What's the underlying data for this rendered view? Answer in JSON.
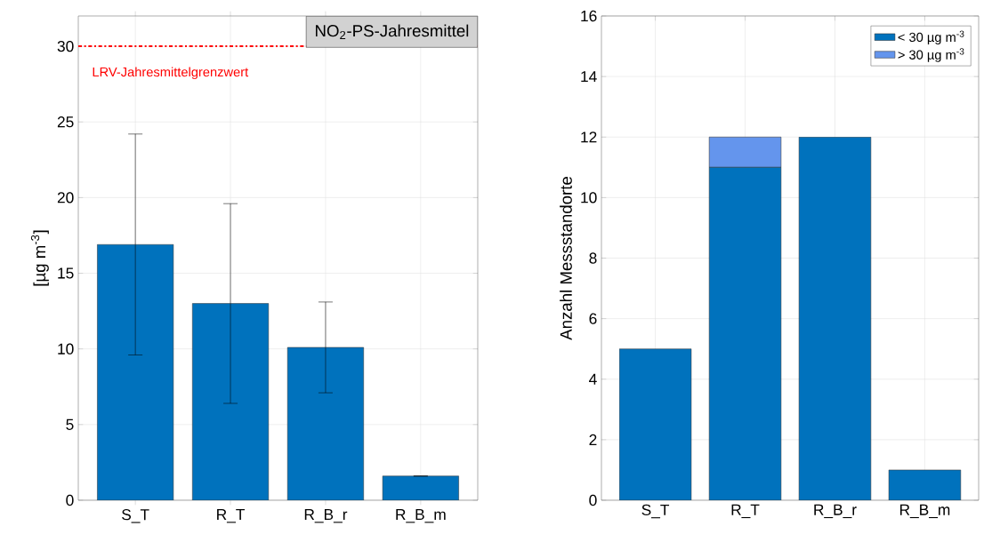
{
  "chart_data": [
    {
      "type": "bar",
      "title": "NO$_{2}$-PS-Jahresmittel",
      "ylabel": "[µg m$^{-3}$]",
      "categories": [
        "S_T",
        "R_T",
        "R_B_r",
        "R_B_m"
      ],
      "values": [
        16.9,
        13.0,
        10.1,
        1.6
      ],
      "errors": [
        [
          9.6,
          24.2
        ],
        [
          6.4,
          19.6
        ],
        [
          7.1,
          13.1
        ],
        null
      ],
      "color": "#0072bd",
      "ylim": [
        0,
        32
      ],
      "yticks": [
        0,
        5,
        10,
        15,
        20,
        25,
        30
      ],
      "grid": true,
      "ref_lines": [
        {
          "axis": "y",
          "value": 30,
          "label": "LRV-Jahresmittelgrenzwert",
          "color": "#ff0000",
          "line_style": "dashed"
        }
      ]
    },
    {
      "type": "bar",
      "ylabel": "Anzahl Messstandorte",
      "categories": [
        "S_T",
        "R_T",
        "R_B_r",
        "R_B_m"
      ],
      "stacked": true,
      "series": [
        {
          "name": "< 30 µg m$^{-3}$",
          "color": "#0072bd",
          "values": [
            5,
            11,
            12,
            1
          ]
        },
        {
          "name": ">  30 µg m$^{-3}$",
          "color": "#6495ed",
          "values": [
            0,
            1,
            0,
            0
          ]
        }
      ],
      "ylim": [
        0,
        16
      ],
      "yticks": [
        0,
        2,
        4,
        6,
        8,
        10,
        12,
        14,
        16
      ],
      "grid": true,
      "legend": "top right"
    }
  ]
}
